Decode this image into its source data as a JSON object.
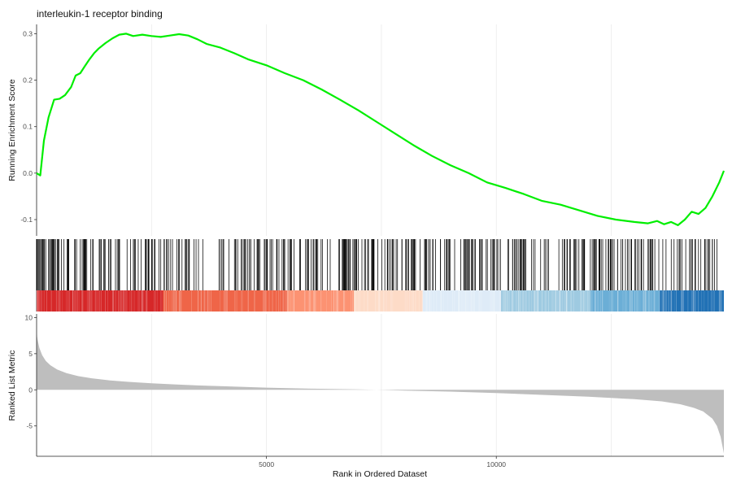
{
  "chart_data": {
    "type": "line",
    "title": "interleukin-1 receptor binding",
    "xlabel": "Rank in Ordered Dataset",
    "xlim": [
      0,
      14950
    ],
    "x_ticks": [
      5000,
      10000
    ],
    "x_tick_labels": [
      "5000",
      "10000"
    ],
    "grid": true,
    "es_panel": {
      "ylabel": "Running Enrichment Score",
      "ylim": [
        -0.135,
        0.32
      ],
      "y_ticks": [
        -0.1,
        0.0,
        0.1,
        0.2,
        0.3
      ],
      "y_tick_labels": [
        "-0.1",
        "0.0",
        "0.1",
        "0.2",
        "0.3"
      ],
      "line_color": "#00ee00",
      "series": [
        {
          "x": [
            0,
            80,
            160,
            260,
            380,
            500,
            620,
            750,
            850,
            950,
            1050,
            1150,
            1250,
            1350,
            1500,
            1650,
            1800,
            1950,
            2100,
            2300,
            2500,
            2700,
            2900,
            3100,
            3300,
            3500,
            3700,
            4000,
            4300,
            4600,
            5000,
            5400,
            5800,
            6200,
            6600,
            7000,
            7400,
            7800,
            8200,
            8600,
            9000,
            9400,
            9800,
            10200,
            10600,
            11000,
            11400,
            11800,
            12200,
            12600,
            13000,
            13300,
            13500,
            13650,
            13800,
            13950,
            14100,
            14250,
            14400,
            14550,
            14700,
            14850,
            14950
          ],
          "y": [
            0.0,
            -0.005,
            0.07,
            0.12,
            0.158,
            0.16,
            0.168,
            0.185,
            0.21,
            0.215,
            0.23,
            0.245,
            0.258,
            0.268,
            0.28,
            0.29,
            0.298,
            0.3,
            0.295,
            0.298,
            0.295,
            0.293,
            0.296,
            0.299,
            0.296,
            0.288,
            0.278,
            0.27,
            0.258,
            0.245,
            0.232,
            0.215,
            0.2,
            0.18,
            0.158,
            0.135,
            0.11,
            0.085,
            0.06,
            0.037,
            0.017,
            0.0,
            -0.02,
            -0.032,
            -0.045,
            -0.06,
            -0.068,
            -0.08,
            -0.092,
            -0.1,
            -0.105,
            -0.108,
            -0.103,
            -0.11,
            -0.105,
            -0.112,
            -0.1,
            -0.083,
            -0.088,
            -0.075,
            -0.05,
            -0.02,
            0.005
          ]
        }
      ]
    },
    "hits_panel": {
      "description_hits": "gene set member positions",
      "color_band": [
        "#d62728",
        "#ef6548",
        "#fc9272",
        "#fddbc7",
        "#deebf7",
        "#9ecae1",
        "#6baed6",
        "#2171b5"
      ],
      "color_band_breaks": [
        0,
        2750,
        5450,
        6900,
        8400,
        10100,
        12050,
        13550,
        14950
      ]
    },
    "metric_panel": {
      "ylabel": "Ranked List Metric",
      "ylim": [
        -9.2,
        10.5
      ],
      "y_ticks": [
        -5,
        0,
        5,
        10
      ],
      "y_tick_labels": [
        "-5",
        "0",
        "5",
        "10"
      ],
      "fill_color": "#bebebe",
      "series": [
        {
          "x": [
            0,
            20,
            60,
            120,
            200,
            300,
            450,
            650,
            900,
            1200,
            1600,
            2000,
            2500,
            3000,
            3500,
            4000,
            5000,
            6000,
            7000,
            7400,
            8000,
            9000,
            10000,
            11000,
            12000,
            13000,
            13600,
            14000,
            14300,
            14500,
            14700,
            14800,
            14880,
            14950
          ],
          "y": [
            7.8,
            7.0,
            5.8,
            4.8,
            4.0,
            3.4,
            2.8,
            2.3,
            1.9,
            1.6,
            1.3,
            1.1,
            0.9,
            0.75,
            0.6,
            0.5,
            0.3,
            0.15,
            0.05,
            0.0,
            -0.1,
            -0.25,
            -0.45,
            -0.7,
            -0.95,
            -1.3,
            -1.6,
            -2.0,
            -2.5,
            -3.0,
            -4.0,
            -5.0,
            -6.5,
            -8.8
          ]
        }
      ]
    }
  }
}
